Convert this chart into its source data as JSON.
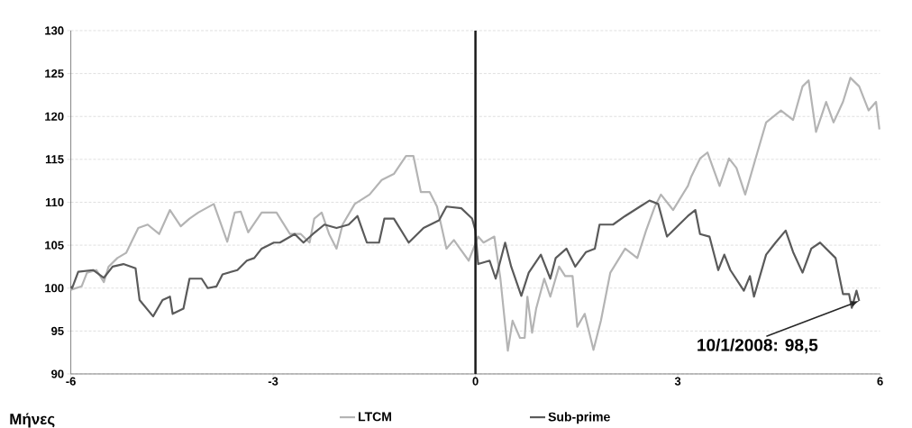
{
  "chart_data": {
    "type": "line",
    "xlabel": "Μήνες",
    "xlim": [
      -6,
      6
    ],
    "xticks": [
      -6,
      -3,
      0,
      3,
      6
    ],
    "ylim": [
      90,
      130
    ],
    "yticks": [
      90,
      95,
      100,
      105,
      110,
      115,
      120,
      125,
      130
    ],
    "grid": "y",
    "legend": "bottom",
    "marker": "none",
    "line_style": "solid",
    "series": [
      {
        "name": "LTCM",
        "color": "#b4b4b4",
        "x": [
          -6,
          -5.84,
          -5.76,
          -5.62,
          -5.51,
          -5.44,
          -5.31,
          -5.18,
          -5.0,
          -4.86,
          -4.69,
          -4.53,
          -4.37,
          -4.24,
          -4.11,
          -3.88,
          -3.68,
          -3.57,
          -3.48,
          -3.37,
          -3.17,
          -2.95,
          -2.75,
          -2.59,
          -2.46,
          -2.39,
          -2.28,
          -2.17,
          -2.06,
          -1.97,
          -1.79,
          -1.57,
          -1.39,
          -1.21,
          -1.03,
          -0.92,
          -0.81,
          -0.68,
          -0.57,
          -0.43,
          -0.32,
          -0.23,
          -0.1,
          0.04,
          0.12,
          0.28,
          0.37,
          0.48,
          0.55,
          0.66,
          0.73,
          0.77,
          0.84,
          0.9,
          1.02,
          1.11,
          1.24,
          1.33,
          1.44,
          1.51,
          1.62,
          1.75,
          1.86,
          2.0,
          2.22,
          2.4,
          2.53,
          2.66,
          2.75,
          2.93,
          3.15,
          3.2,
          3.33,
          3.44,
          3.62,
          3.76,
          3.87,
          4.0,
          4.18,
          4.31,
          4.53,
          4.71,
          4.85,
          4.94,
          5.05,
          5.2,
          5.31,
          5.45,
          5.56,
          5.69,
          5.83,
          5.94,
          5.99
        ],
        "values": [
          99.8,
          100.2,
          101.8,
          102.1,
          100.7,
          102.5,
          103.5,
          104.1,
          107.0,
          107.4,
          106.3,
          109.1,
          107.2,
          108.1,
          108.8,
          109.8,
          105.4,
          108.8,
          108.9,
          106.5,
          108.8,
          108.8,
          106.3,
          106.3,
          105.3,
          108.1,
          108.8,
          106.3,
          104.6,
          107.4,
          109.8,
          110.9,
          112.6,
          113.3,
          115.4,
          115.4,
          111.2,
          111.2,
          109.5,
          104.6,
          105.6,
          104.6,
          103.2,
          106.0,
          105.3,
          106.0,
          101.1,
          92.7,
          96.2,
          94.2,
          94.2,
          99.0,
          94.8,
          97.6,
          101.1,
          99.0,
          102.5,
          101.4,
          101.4,
          95.5,
          97.0,
          92.8,
          96.2,
          101.8,
          104.6,
          103.5,
          106.7,
          109.5,
          110.9,
          109.1,
          111.9,
          113.0,
          115.1,
          115.8,
          111.9,
          115.1,
          114.0,
          110.9,
          115.8,
          119.3,
          120.7,
          119.6,
          123.5,
          124.2,
          118.2,
          121.7,
          119.3,
          121.7,
          124.5,
          123.5,
          120.7,
          121.7,
          118.5
        ]
      },
      {
        "name": "Sub-prime",
        "color": "#5a5a5a",
        "x": [
          -6,
          -5.98,
          -5.89,
          -5.67,
          -5.51,
          -5.38,
          -5.22,
          -5.04,
          -4.98,
          -4.78,
          -4.64,
          -4.53,
          -4.49,
          -4.33,
          -4.24,
          -4.06,
          -3.97,
          -3.84,
          -3.75,
          -3.53,
          -3.39,
          -3.28,
          -3.17,
          -2.99,
          -2.9,
          -2.68,
          -2.55,
          -2.41,
          -2.24,
          -2.06,
          -1.88,
          -1.75,
          -1.61,
          -1.43,
          -1.35,
          -1.21,
          -0.99,
          -0.77,
          -0.54,
          -0.43,
          -0.21,
          -0.05,
          0.0,
          0.04,
          0.21,
          0.3,
          0.44,
          0.53,
          0.68,
          0.79,
          0.97,
          1.11,
          1.19,
          1.35,
          1.48,
          1.64,
          1.77,
          1.84,
          2.04,
          2.22,
          2.44,
          2.58,
          2.71,
          2.84,
          3.02,
          3.15,
          3.26,
          3.33,
          3.47,
          3.6,
          3.69,
          3.78,
          3.98,
          4.07,
          4.13,
          4.31,
          4.45,
          4.6,
          4.71,
          4.85,
          4.98,
          5.11,
          5.34,
          5.45,
          5.54,
          5.58,
          5.65,
          5.69
        ],
        "values": [
          100.2,
          100.0,
          101.9,
          102.1,
          101.2,
          102.5,
          102.8,
          102.3,
          98.6,
          96.7,
          98.6,
          99.0,
          97.0,
          97.6,
          101.1,
          101.1,
          100.0,
          100.2,
          101.6,
          102.1,
          103.2,
          103.5,
          104.6,
          105.3,
          105.3,
          106.3,
          105.3,
          106.3,
          107.4,
          107.0,
          107.4,
          108.4,
          105.3,
          105.3,
          108.1,
          108.1,
          105.3,
          107.0,
          107.9,
          109.5,
          109.3,
          108.1,
          106.7,
          102.8,
          103.2,
          101.1,
          105.3,
          102.5,
          99.1,
          101.8,
          103.9,
          101.1,
          103.5,
          104.6,
          102.5,
          104.2,
          104.6,
          107.4,
          107.4,
          108.4,
          109.5,
          110.2,
          109.8,
          106.0,
          107.4,
          108.4,
          109.1,
          106.3,
          106.0,
          102.1,
          103.9,
          102.1,
          99.7,
          101.4,
          99.0,
          103.9,
          105.3,
          106.7,
          104.2,
          101.8,
          104.6,
          105.3,
          103.5,
          99.3,
          99.3,
          97.7,
          99.7,
          98.5
        ]
      }
    ],
    "ref_lines": [
      {
        "axis": "x",
        "value": 0,
        "color": "#1a1a1a"
      }
    ],
    "annotations": [
      {
        "text": "10/1/2008: 98,5",
        "x": 5.69,
        "y": 98.5
      }
    ]
  }
}
